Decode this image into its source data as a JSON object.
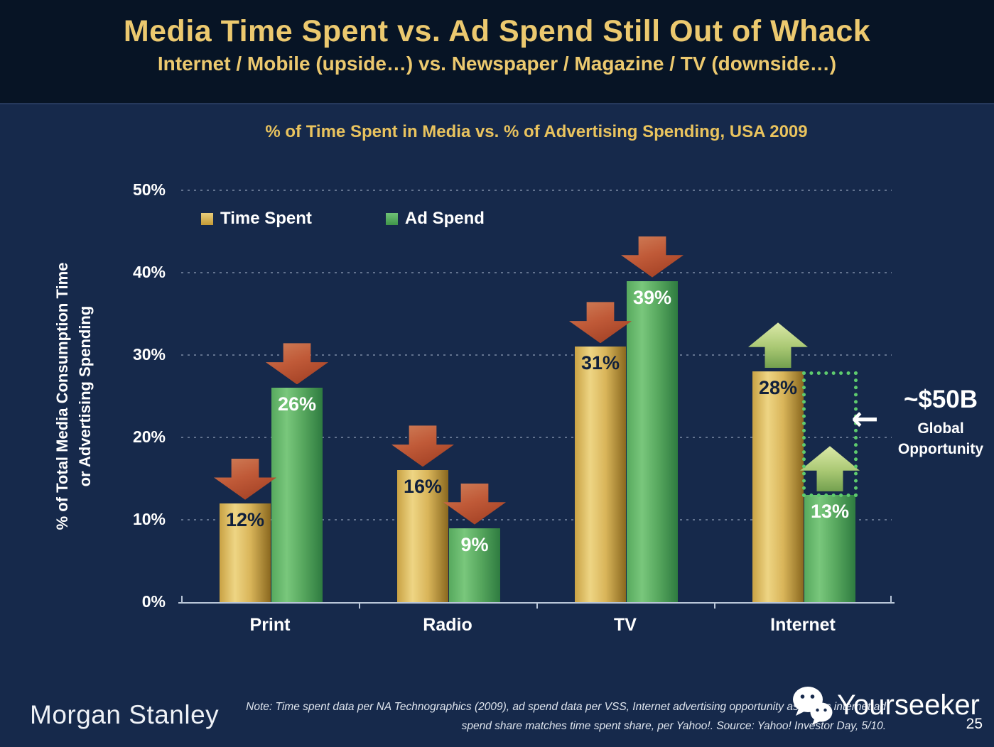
{
  "header": {
    "title": "Media Time Spent vs. Ad Spend Still Out of Whack",
    "subtitle": "Internet / Mobile (upside…) vs. Newspaper / Magazine / TV (downside…)"
  },
  "chart_data": {
    "type": "bar",
    "title": "% of Time Spent in Media vs. % of Advertising Spending, USA 2009",
    "categories": [
      "Print",
      "Radio",
      "TV",
      "Internet"
    ],
    "series": [
      {
        "name": "Time Spent",
        "color_key": "time_spent",
        "values": [
          12,
          16,
          31,
          28
        ]
      },
      {
        "name": "Ad Spend",
        "color_key": "ad_spend",
        "values": [
          26,
          9,
          39,
          13
        ]
      }
    ],
    "value_label_suffix": "%",
    "ylabel_lines": [
      "% of Total Media Consumption Time",
      "or Advertising Spending"
    ],
    "ylim": [
      0,
      50
    ],
    "ytick_step": 10,
    "ytick_suffix": "%",
    "grid": "dotted horizontal gridlines every 10%",
    "legend_position": "top-left inside plot",
    "trend_arrows": {
      "Time Spent": [
        "down",
        "down",
        "down",
        "up"
      ],
      "Ad Spend": [
        "down",
        "down",
        "down",
        "up"
      ]
    },
    "annotation": {
      "category": "Internet",
      "gap_from": 28,
      "gap_to": 13,
      "arrow": "←",
      "label": "~$50B",
      "sub1": "Global",
      "sub2": "Opportunity"
    }
  },
  "footer": {
    "brand": "Morgan Stanley",
    "note_line1": "Note: Time spent data per NA Technographics (2009), ad spend data per VSS, Internet advertising opportunity assumes internet ad",
    "note_line2": "spend share matches time spent share, per Yahoo!. Source: Yahoo! Investor Day, 5/10.",
    "page_number": "25"
  },
  "watermark": {
    "text": "Yourseeker",
    "icon": "wechat-icon"
  },
  "colors": {
    "header_bg": "#071425",
    "body_bg": "#16294b",
    "accent_gold": "#ecc96f",
    "time_spent": "#d9b55a",
    "ad_spend": "#57a75e",
    "arrow_down": "#c05a38",
    "arrow_up": "#a9c873",
    "opportunity_outline": "#5ecb6e"
  }
}
